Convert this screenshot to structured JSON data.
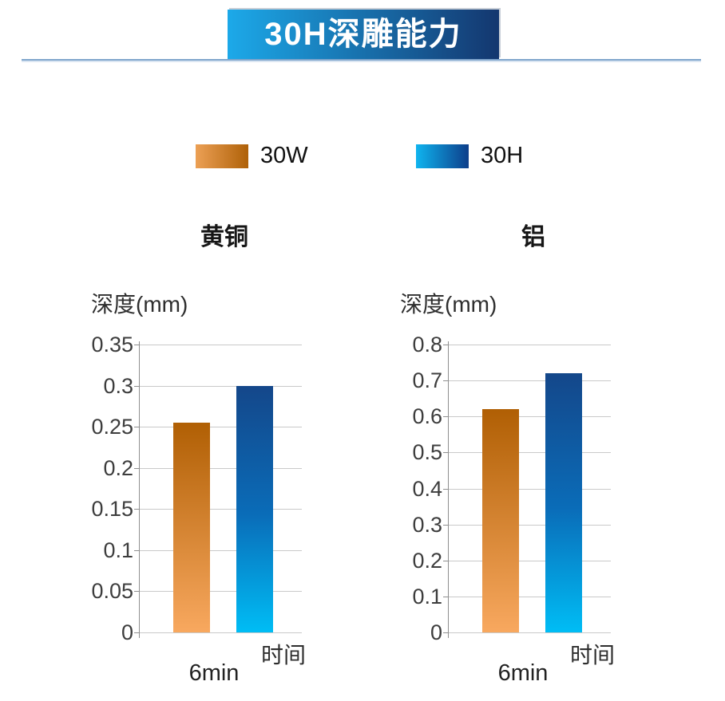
{
  "header": {
    "title": "30H深雕能力"
  },
  "legend": {
    "items": [
      {
        "label": "30W",
        "swatch_start": "#ECA055",
        "swatch_end": "#AF6108"
      },
      {
        "label": "30H",
        "swatch_start": "#0FB4EF",
        "swatch_end": "#0D3E8A"
      }
    ]
  },
  "colors": {
    "banner_start": "#1CA9E9",
    "banner_end": "#14376F",
    "divider": "#7FA5CC",
    "gridline": "#C9C9C9",
    "axis": "#8F8F8F",
    "bars": [
      {
        "top": "#B05F04",
        "bottom": "#F8A85F"
      },
      {
        "top": "#14478A",
        "mid": "#0A6CB8",
        "bottom": "#00BDF5"
      }
    ]
  },
  "chart_data": [
    {
      "type": "bar",
      "title": "黄铜",
      "ylabel": "深度(mm)",
      "xlabel": "时间",
      "categories": [
        "6min"
      ],
      "series": [
        {
          "name": "30W",
          "values": [
            0.255
          ]
        },
        {
          "name": "30H",
          "values": [
            0.3
          ]
        }
      ],
      "ylim": [
        0,
        0.35
      ],
      "ytick_step": 0.05,
      "yticks": [
        "0.35",
        "0.3",
        "0.25",
        "0.2",
        "0.15",
        "0.1",
        "0.05",
        "0"
      ],
      "grid": true,
      "legend_position": "top"
    },
    {
      "type": "bar",
      "title": "铝",
      "ylabel": "深度(mm)",
      "xlabel": "时间",
      "categories": [
        "6min"
      ],
      "series": [
        {
          "name": "30W",
          "values": [
            0.62
          ]
        },
        {
          "name": "30H",
          "values": [
            0.72
          ]
        }
      ],
      "ylim": [
        0,
        0.8
      ],
      "ytick_step": 0.1,
      "yticks": [
        "0.8",
        "0.7",
        "0.6",
        "0.5",
        "0.4",
        "0.3",
        "0.2",
        "0.1",
        "0"
      ],
      "grid": true,
      "legend_position": "top"
    }
  ]
}
